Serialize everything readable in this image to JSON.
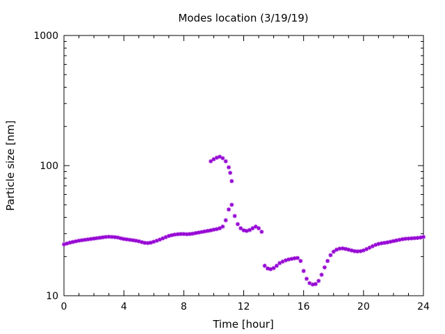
{
  "chart_data": {
    "type": "scatter",
    "title": "Modes location (3/19/19)",
    "xlabel": "Time [hour]",
    "ylabel": "Particle size [nm]",
    "xlim": [
      0,
      24
    ],
    "ylim": [
      10,
      1000
    ],
    "yscale": "log",
    "grid": false,
    "xticks": [
      0,
      4,
      8,
      12,
      16,
      20,
      24
    ],
    "xtick_labels": [
      "0",
      "4",
      "8",
      "12",
      "16",
      "20",
      "24"
    ],
    "yticks": [
      10,
      100,
      1000
    ],
    "ytick_labels": [
      "10",
      "100",
      "1000"
    ],
    "marker_color": "#9400d3",
    "marker": "asterisk",
    "series": [
      {
        "name": "",
        "x": [
          0,
          0.2,
          0.4,
          0.6,
          0.8,
          1.0,
          1.2,
          1.4,
          1.6,
          1.8,
          2.0,
          2.2,
          2.4,
          2.6,
          2.8,
          3.0,
          3.2,
          3.4,
          3.6,
          3.8,
          4.0,
          4.2,
          4.4,
          4.6,
          4.8,
          5.0,
          5.2,
          5.4,
          5.6,
          5.8,
          6.0,
          6.2,
          6.4,
          6.6,
          6.8,
          7.0,
          7.2,
          7.4,
          7.6,
          7.8,
          8.0,
          8.2,
          8.4,
          8.6,
          8.8,
          9.0,
          9.2,
          9.4,
          9.6,
          9.8,
          10.0,
          10.2,
          10.4,
          10.6,
          10.8,
          11.0,
          11.2,
          11.4,
          11.6,
          11.8,
          12.0,
          12.2,
          12.4,
          12.6,
          12.8,
          13.0,
          13.2,
          13.4,
          13.6,
          13.8,
          14.0,
          14.2,
          14.4,
          14.6,
          14.8,
          15.0,
          15.2,
          15.4,
          15.6,
          15.8,
          16.0,
          16.2,
          16.4,
          16.6,
          16.8,
          17.0,
          17.2,
          17.4,
          17.6,
          17.8,
          18.0,
          18.2,
          18.4,
          18.6,
          18.8,
          19.0,
          19.2,
          19.4,
          19.6,
          19.8,
          20.0,
          20.2,
          20.4,
          20.6,
          20.8,
          21.0,
          21.2,
          21.4,
          21.6,
          21.8,
          22.0,
          22.2,
          22.4,
          22.6,
          22.8,
          23.0,
          23.2,
          23.4,
          23.6,
          23.8,
          24.0,
          9.8,
          10.0,
          10.2,
          10.4,
          10.6,
          10.8,
          11.0,
          11.1,
          11.2
        ],
        "y": [
          24.8,
          25.2,
          25.6,
          25.9,
          26.2,
          26.5,
          26.7,
          26.9,
          27.1,
          27.3,
          27.5,
          27.7,
          27.9,
          28.1,
          28.3,
          28.4,
          28.3,
          28.2,
          28.0,
          27.6,
          27.3,
          27.1,
          26.9,
          26.7,
          26.5,
          26.2,
          25.8,
          25.5,
          25.4,
          25.6,
          26.0,
          26.5,
          27.0,
          27.6,
          28.2,
          28.8,
          29.2,
          29.5,
          29.7,
          29.8,
          29.8,
          29.7,
          29.8,
          30.0,
          30.3,
          30.6,
          30.9,
          31.2,
          31.5,
          31.8,
          32.2,
          32.5,
          33.0,
          34.0,
          38.0,
          46.0,
          50.0,
          41.0,
          35.5,
          33.0,
          31.8,
          31.5,
          32.0,
          33.0,
          34.0,
          33.0,
          31.0,
          17.0,
          16.2,
          16.0,
          16.3,
          17.0,
          17.8,
          18.3,
          18.7,
          19.0,
          19.2,
          19.4,
          19.5,
          18.5,
          15.5,
          13.5,
          12.5,
          12.2,
          12.3,
          13.0,
          14.5,
          16.5,
          18.5,
          20.5,
          21.8,
          22.6,
          23.0,
          23.1,
          22.9,
          22.6,
          22.3,
          22.0,
          21.9,
          22.0,
          22.3,
          22.8,
          23.4,
          24.0,
          24.6,
          25.0,
          25.3,
          25.5,
          25.7,
          26.0,
          26.3,
          26.6,
          26.9,
          27.2,
          27.4,
          27.5,
          27.6,
          27.7,
          27.8,
          28.0,
          28.3,
          108,
          112,
          115,
          117,
          114,
          108,
          97,
          88,
          76
        ]
      }
    ]
  }
}
